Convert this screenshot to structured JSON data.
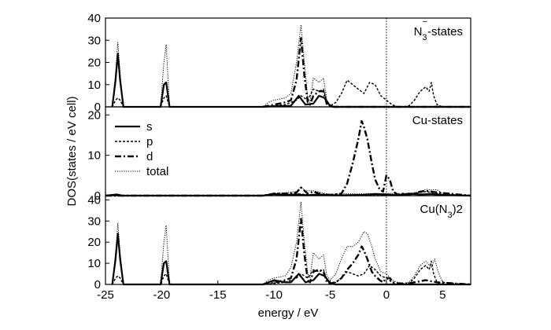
{
  "chart_data": {
    "type": "line",
    "xlabel": "energy / eV",
    "ylabel": "DOS(states / eV cell)",
    "xlim": [
      -25,
      7.5
    ],
    "x_ticks": [
      -25,
      -20,
      -15,
      -10,
      -5,
      0,
      5
    ],
    "fermi_level": 0,
    "legend": {
      "placement": "top-left of middle panel",
      "entries": [
        {
          "name": "s",
          "style": "solid"
        },
        {
          "name": "p",
          "style": "dashed"
        },
        {
          "name": "d",
          "style": "dashdot"
        },
        {
          "name": "total",
          "style": "dotted"
        }
      ]
    },
    "panels": [
      {
        "label_main": "N",
        "label_sub": "3",
        "label_sup": "−",
        "label_tail": "-states",
        "ylim": [
          0,
          40
        ],
        "yticks": [
          0,
          10,
          20,
          30,
          40
        ],
        "series": [
          {
            "name": "s",
            "x": [
              -24.4,
              -24.1,
              -23.9,
              -23.7,
              -23.4,
              -20.1,
              -19.8,
              -19.6,
              -19.3,
              -11,
              -10,
              -8.5,
              -7.8,
              -7.2,
              -6.5,
              -6,
              -5.5,
              -5,
              -4.5,
              0,
              7.5
            ],
            "y": [
              0,
              12,
              24,
              12,
              0,
              0,
              10,
              11,
              0,
              0,
              0.3,
              0.5,
              5,
              1,
              1.5,
              5,
              4,
              0.2,
              0,
              0,
              0
            ]
          },
          {
            "name": "p",
            "x": [
              -24.4,
              -24.1,
              -23.9,
              -23.7,
              -23.4,
              -20.1,
              -19.8,
              -19.6,
              -19.3,
              -11,
              -10,
              -9,
              -8,
              -7.6,
              -7,
              -6.5,
              -6,
              -5.6,
              -5.3,
              -5,
              -4.5,
              -4,
              -3.5,
              -3,
              -2.5,
              -2,
              -1.5,
              -1,
              -0.5,
              0,
              0.5,
              1,
              1.5,
              2,
              2.5,
              3,
              3.5,
              3.8,
              4,
              4.2,
              4.5,
              5,
              7.5
            ],
            "y": [
              0,
              3,
              4,
              3,
              0,
              0,
              4,
              5,
              0,
              0,
              0.5,
              1,
              3,
              5,
              3,
              8,
              7,
              8,
              2,
              0.5,
              2,
              6,
              12,
              10,
              8,
              6,
              11,
              10,
              5,
              3,
              1,
              0,
              0,
              0.5,
              3,
              7,
              9,
              7,
              11,
              5,
              1,
              0,
              0
            ]
          },
          {
            "name": "d",
            "x": [
              -11,
              -10.5,
              -10,
              -9.5,
              -9,
              -8.5,
              -8,
              -7.6,
              -7.3,
              -7,
              -6.8,
              -6.5,
              -6,
              -5.6,
              -5.3,
              -5,
              -4.7,
              7.5
            ],
            "y": [
              0,
              0.5,
              1,
              1.5,
              2,
              3,
              12,
              31,
              14,
              2,
              1,
              5,
              7,
              7,
              1,
              0.3,
              0,
              0
            ]
          },
          {
            "name": "total",
            "x": [
              -24.4,
              -24.1,
              -23.9,
              -23.7,
              -23.4,
              -20.1,
              -19.8,
              -19.6,
              -19.3,
              -11,
              -10.5,
              -10,
              -9,
              -8.5,
              -8,
              -7.6,
              -7.3,
              -7,
              -6.8,
              -6.5,
              -6,
              -5.6,
              -5.3,
              -5,
              -4.5,
              7.5
            ],
            "y": [
              0,
              15,
              29,
              15,
              0,
              0,
              20,
              28,
              0,
              0,
              2,
              3,
              4,
              6,
              20,
              37,
              20,
              4,
              2,
              13,
              11,
              13,
              3,
              1,
              0,
              0
            ]
          }
        ]
      },
      {
        "label_main": "Cu-states",
        "label_sub": "",
        "label_sup": "",
        "label_tail": "",
        "ylim": [
          0,
          22
        ],
        "yticks": [
          0,
          10,
          20
        ],
        "series": [
          {
            "name": "s",
            "x": [
              -25,
              -24,
              -23.5,
              -11,
              -10,
              -9,
              -8,
              -7,
              -6,
              -5,
              -4,
              -2,
              -1,
              0,
              1,
              2,
              3,
              4,
              5,
              7.5
            ],
            "y": [
              0,
              0.3,
              0,
              0,
              0.4,
              0.2,
              0.3,
              0.1,
              0.3,
              0.1,
              0.1,
              0.2,
              0.4,
              0.3,
              0.1,
              0.5,
              0.3,
              0.4,
              0.2,
              0
            ]
          },
          {
            "name": "p",
            "x": [
              -25,
              -11,
              -10,
              -9,
              -8,
              -7,
              -6,
              -5,
              -4,
              0,
              2,
              3,
              3.5,
              4,
              4.5,
              5,
              7.5
            ],
            "y": [
              0,
              0,
              0.3,
              0.2,
              0.5,
              0.2,
              0.3,
              0.1,
              0,
              0,
              0.3,
              0.8,
              1,
              0.8,
              0.6,
              0.2,
              0
            ]
          },
          {
            "name": "d",
            "x": [
              -25,
              -11,
              -10,
              -9,
              -8,
              -7.6,
              -7.2,
              -7,
              -6.5,
              -6,
              -5.5,
              -5,
              -4,
              -3.5,
              -3,
              -2.5,
              -2.2,
              -2,
              -1.7,
              -1.3,
              -1,
              -0.6,
              -0.3,
              0,
              0.3,
              0.6,
              1,
              1.5,
              2,
              2.5,
              3,
              3.5,
              4,
              4.5,
              7.5
            ],
            "y": [
              0,
              0,
              0.5,
              0.5,
              0.8,
              2,
              1,
              0.5,
              1,
              0.5,
              0.3,
              0.2,
              0.5,
              3,
              8,
              14,
              18.5,
              17,
              14,
              8,
              4,
              1.5,
              1,
              5,
              4,
              1,
              0.3,
              0.5,
              0.3,
              0.5,
              1,
              1.2,
              1,
              0.8,
              0
            ]
          },
          {
            "name": "total",
            "x": [
              -25,
              -11,
              -10,
              -9,
              -8,
              -7.6,
              -7.2,
              -6.5,
              -5,
              -4,
              2,
              3,
              3.5,
              4,
              4.5,
              5,
              7.5
            ],
            "y": [
              0,
              0,
              0.6,
              0.7,
              1,
              2.2,
              1.2,
              1.2,
              0.3,
              0.5,
              0.5,
              1,
              1.6,
              1.4,
              1.5,
              0.5,
              0
            ]
          }
        ]
      },
      {
        "label_main": "Cu(N",
        "label_sub": "3",
        "label_sup": "",
        "label_tail": ")2",
        "ylim": [
          0,
          42
        ],
        "yticks": [
          0,
          10,
          20,
          30,
          40
        ],
        "series": [
          {
            "name": "s",
            "x": [
              -24.4,
              -24.1,
              -23.9,
              -23.7,
              -23.4,
              -20.1,
              -19.8,
              -19.6,
              -19.3,
              -11,
              -10,
              -9,
              -8.5,
              -7.8,
              -7.2,
              -6.5,
              -6,
              -5.5,
              -5,
              -4.5,
              0,
              7.5
            ],
            "y": [
              0,
              12,
              24,
              12,
              0,
              0,
              10,
              11,
              0,
              0,
              2,
              1,
              1,
              5,
              1,
              2,
              5,
              4,
              0.5,
              0,
              0,
              0
            ]
          },
          {
            "name": "p",
            "x": [
              -24.4,
              -24.1,
              -23.9,
              -23.7,
              -23.4,
              -20.1,
              -19.8,
              -19.6,
              -19.3,
              -11,
              -10,
              -9,
              -8,
              -7.6,
              -7,
              -6.5,
              -6,
              -5.6,
              -5.3,
              -5,
              -4.5,
              -4,
              -3.5,
              -3,
              -2.5,
              -2,
              -1.5,
              -1,
              -0.5,
              0,
              0.5,
              1,
              1.5,
              2,
              2.5,
              3,
              3.5,
              3.8,
              4,
              4.2,
              4.5,
              5,
              7.5
            ],
            "y": [
              0,
              3,
              4,
              3,
              0,
              0,
              4,
              5,
              0,
              0,
              0.5,
              1,
              3,
              5,
              3,
              7,
              6,
              7,
              2,
              0.5,
              1,
              3,
              6,
              5,
              4,
              5,
              9,
              7,
              4,
              3,
              1,
              0,
              0,
              0.5,
              3,
              7,
              9,
              7,
              11,
              5,
              1,
              0,
              0
            ]
          },
          {
            "name": "d",
            "x": [
              -11,
              -10,
              -9,
              -8.5,
              -8,
              -7.6,
              -7.3,
              -7,
              -6.8,
              -6.5,
              -6,
              -5.6,
              -5.3,
              -5,
              -4.5,
              -4,
              -3.5,
              -3,
              -2.5,
              -2.2,
              -2,
              -1.7,
              -1.3,
              -1,
              -0.6,
              -0.3,
              0,
              0.3,
              0.6,
              1,
              1.5,
              2,
              2.5,
              3,
              3.5,
              4,
              4.5,
              7.5
            ],
            "y": [
              0,
              1,
              2,
              3,
              12,
              31,
              14,
              2,
              1,
              6,
              7,
              6,
              1,
              0.5,
              1,
              3,
              7,
              10,
              14,
              18,
              16,
              12,
              6,
              4,
              2,
              1,
              3,
              3,
              1,
              0.5,
              0.5,
              0.5,
              1,
              1.5,
              2,
              1.5,
              1,
              0
            ]
          },
          {
            "name": "total",
            "x": [
              -24.4,
              -24.1,
              -23.9,
              -23.7,
              -23.4,
              -20.1,
              -19.8,
              -19.6,
              -19.3,
              -11,
              -10.5,
              -10,
              -9,
              -8.5,
              -8,
              -7.6,
              -7.3,
              -7,
              -6.8,
              -6.5,
              -6,
              -5.6,
              -5.3,
              -5,
              -4.5,
              -4,
              -3.5,
              -3,
              -2.5,
              -2,
              -1.7,
              -1.3,
              -1,
              -0.5,
              0,
              0.5,
              1,
              1.5,
              2,
              2.5,
              3,
              3.5,
              4,
              4.3,
              4.6,
              5,
              7.5
            ],
            "y": [
              0,
              15,
              29,
              15,
              0,
              0,
              20,
              28,
              0,
              0,
              2,
              3,
              4,
              8,
              20,
              39,
              20,
              5,
              3,
              15,
              12,
              14,
              4,
              2,
              5,
              12,
              18,
              18,
              20,
              25,
              24,
              18,
              12,
              6,
              5,
              2,
              1,
              0.5,
              1,
              4,
              9,
              11,
              8,
              12,
              6,
              1,
              0
            ]
          }
        ]
      }
    ]
  }
}
